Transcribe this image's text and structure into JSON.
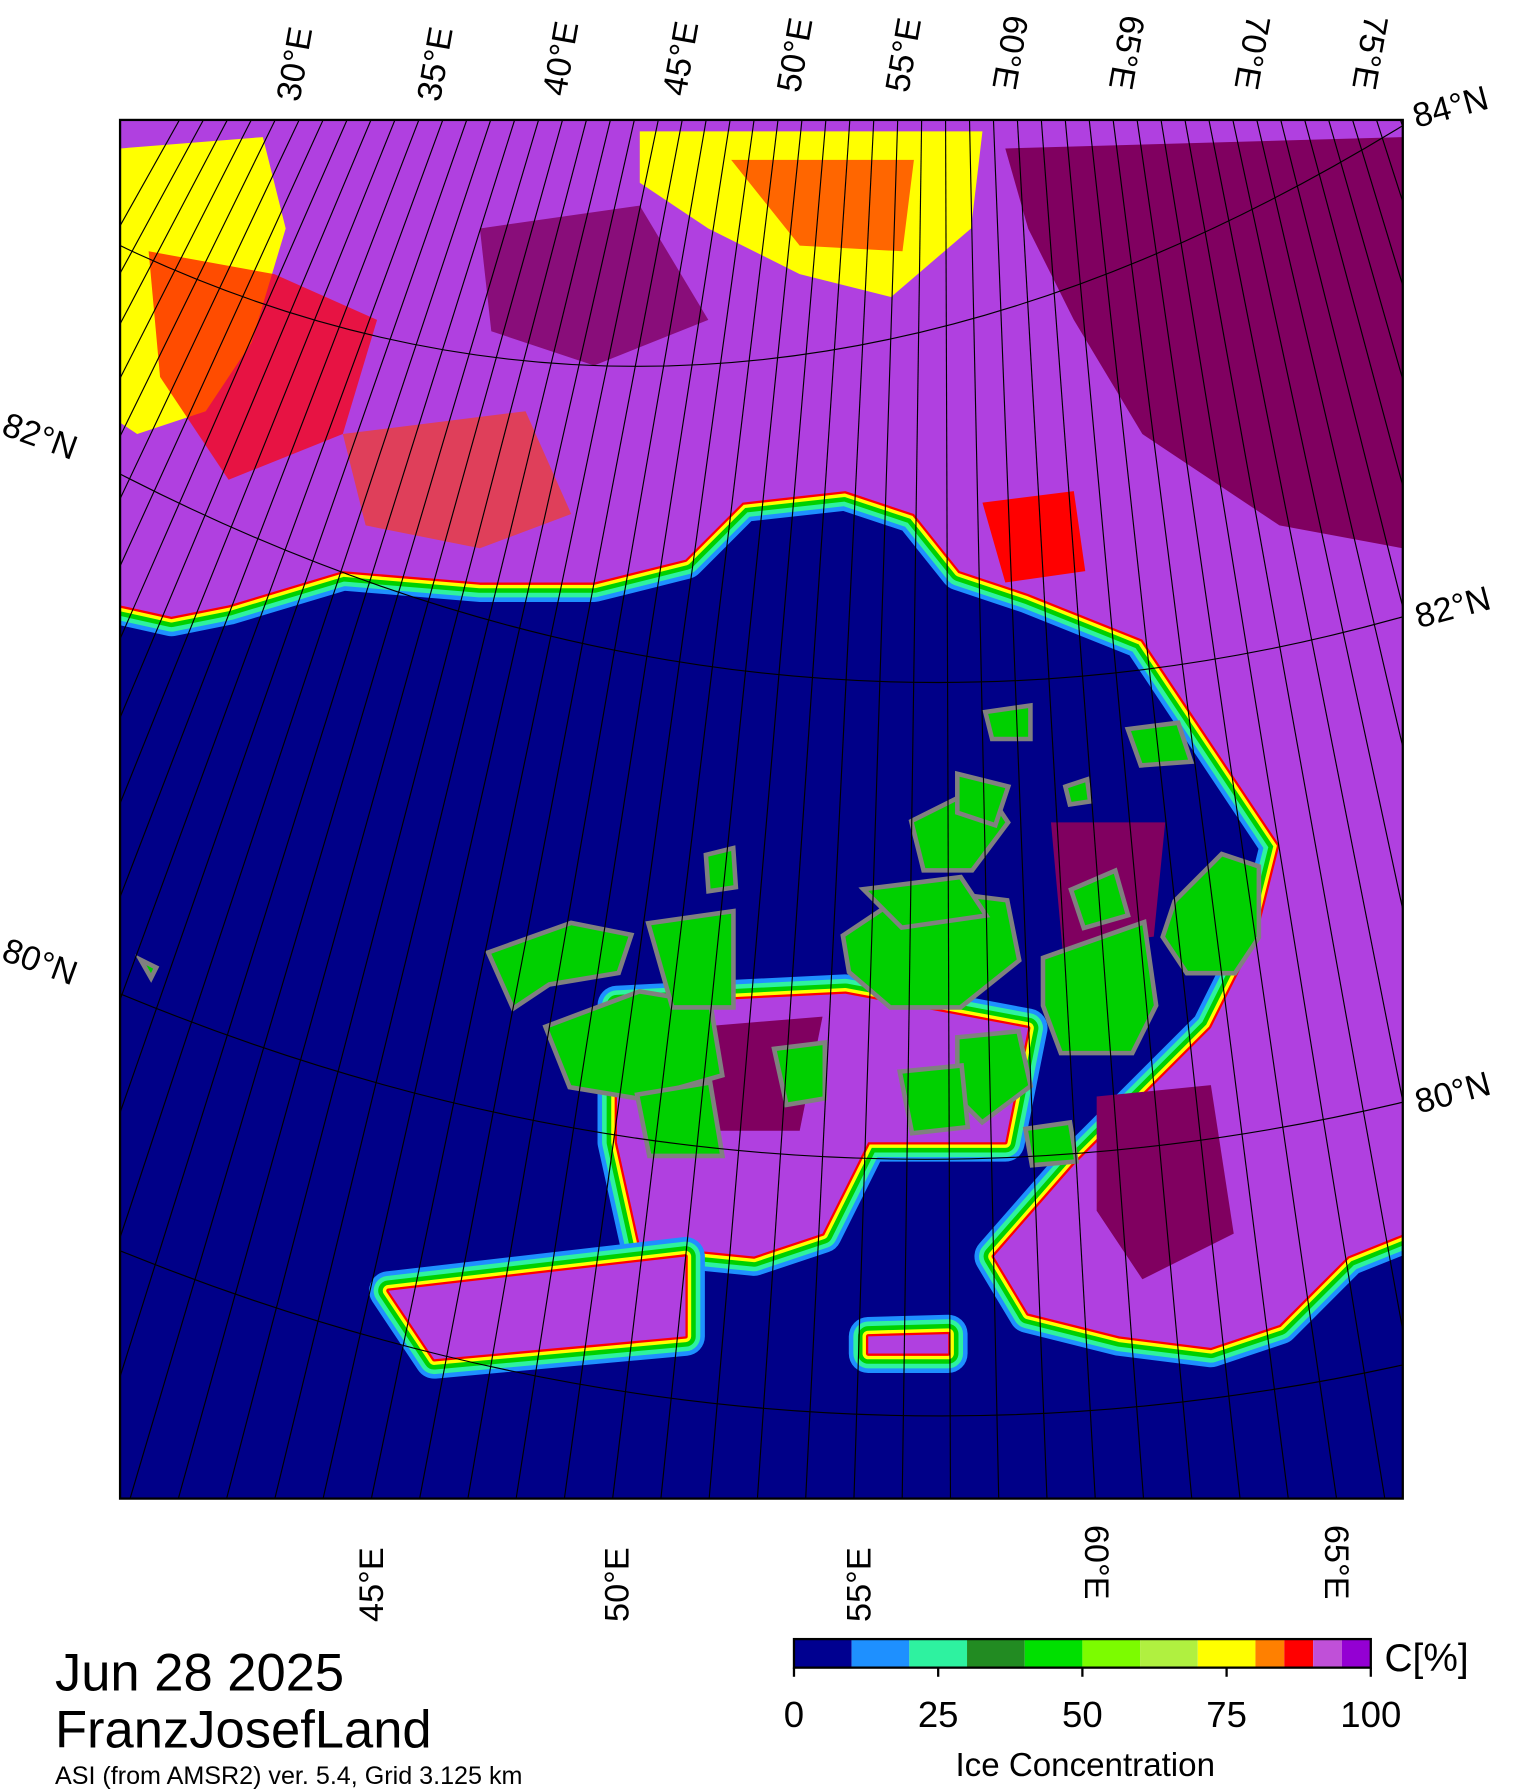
{
  "map": {
    "top_lon_labels": [
      "30°E",
      "35°E",
      "40°E",
      "45°E",
      "50°E",
      "55°E",
      "60°E",
      "65°E",
      "70°E",
      "75°E"
    ],
    "bottom_lon_labels": [
      "45°E",
      "50°E",
      "55°E",
      "60°E",
      "65°E"
    ],
    "left_lat_labels": [
      "82°N",
      "80°N"
    ],
    "right_lat_labels": [
      "84°N",
      "82°N",
      "80°N"
    ]
  },
  "footer": {
    "date": "Jun 28 2025",
    "region": "FranzJosefLand",
    "source": "ASI (from AMSR2) ver. 5.4,  Grid 3.125 km"
  },
  "colorbar": {
    "label": "Ice Concentration",
    "unit_label": "C[%]",
    "bounds": [
      0,
      10,
      20,
      30,
      40,
      50,
      60,
      70,
      80,
      85,
      90,
      95,
      100
    ],
    "colors": [
      "#000090",
      "#1e90ff",
      "#2ef2a0",
      "#228b22",
      "#00e000",
      "#7cfc00",
      "#b0f040",
      "#ffff00",
      "#ff8000",
      "#ff0000",
      "#c050d8",
      "#9400d3"
    ],
    "ticks": [
      0,
      25,
      50,
      75,
      100
    ]
  }
}
